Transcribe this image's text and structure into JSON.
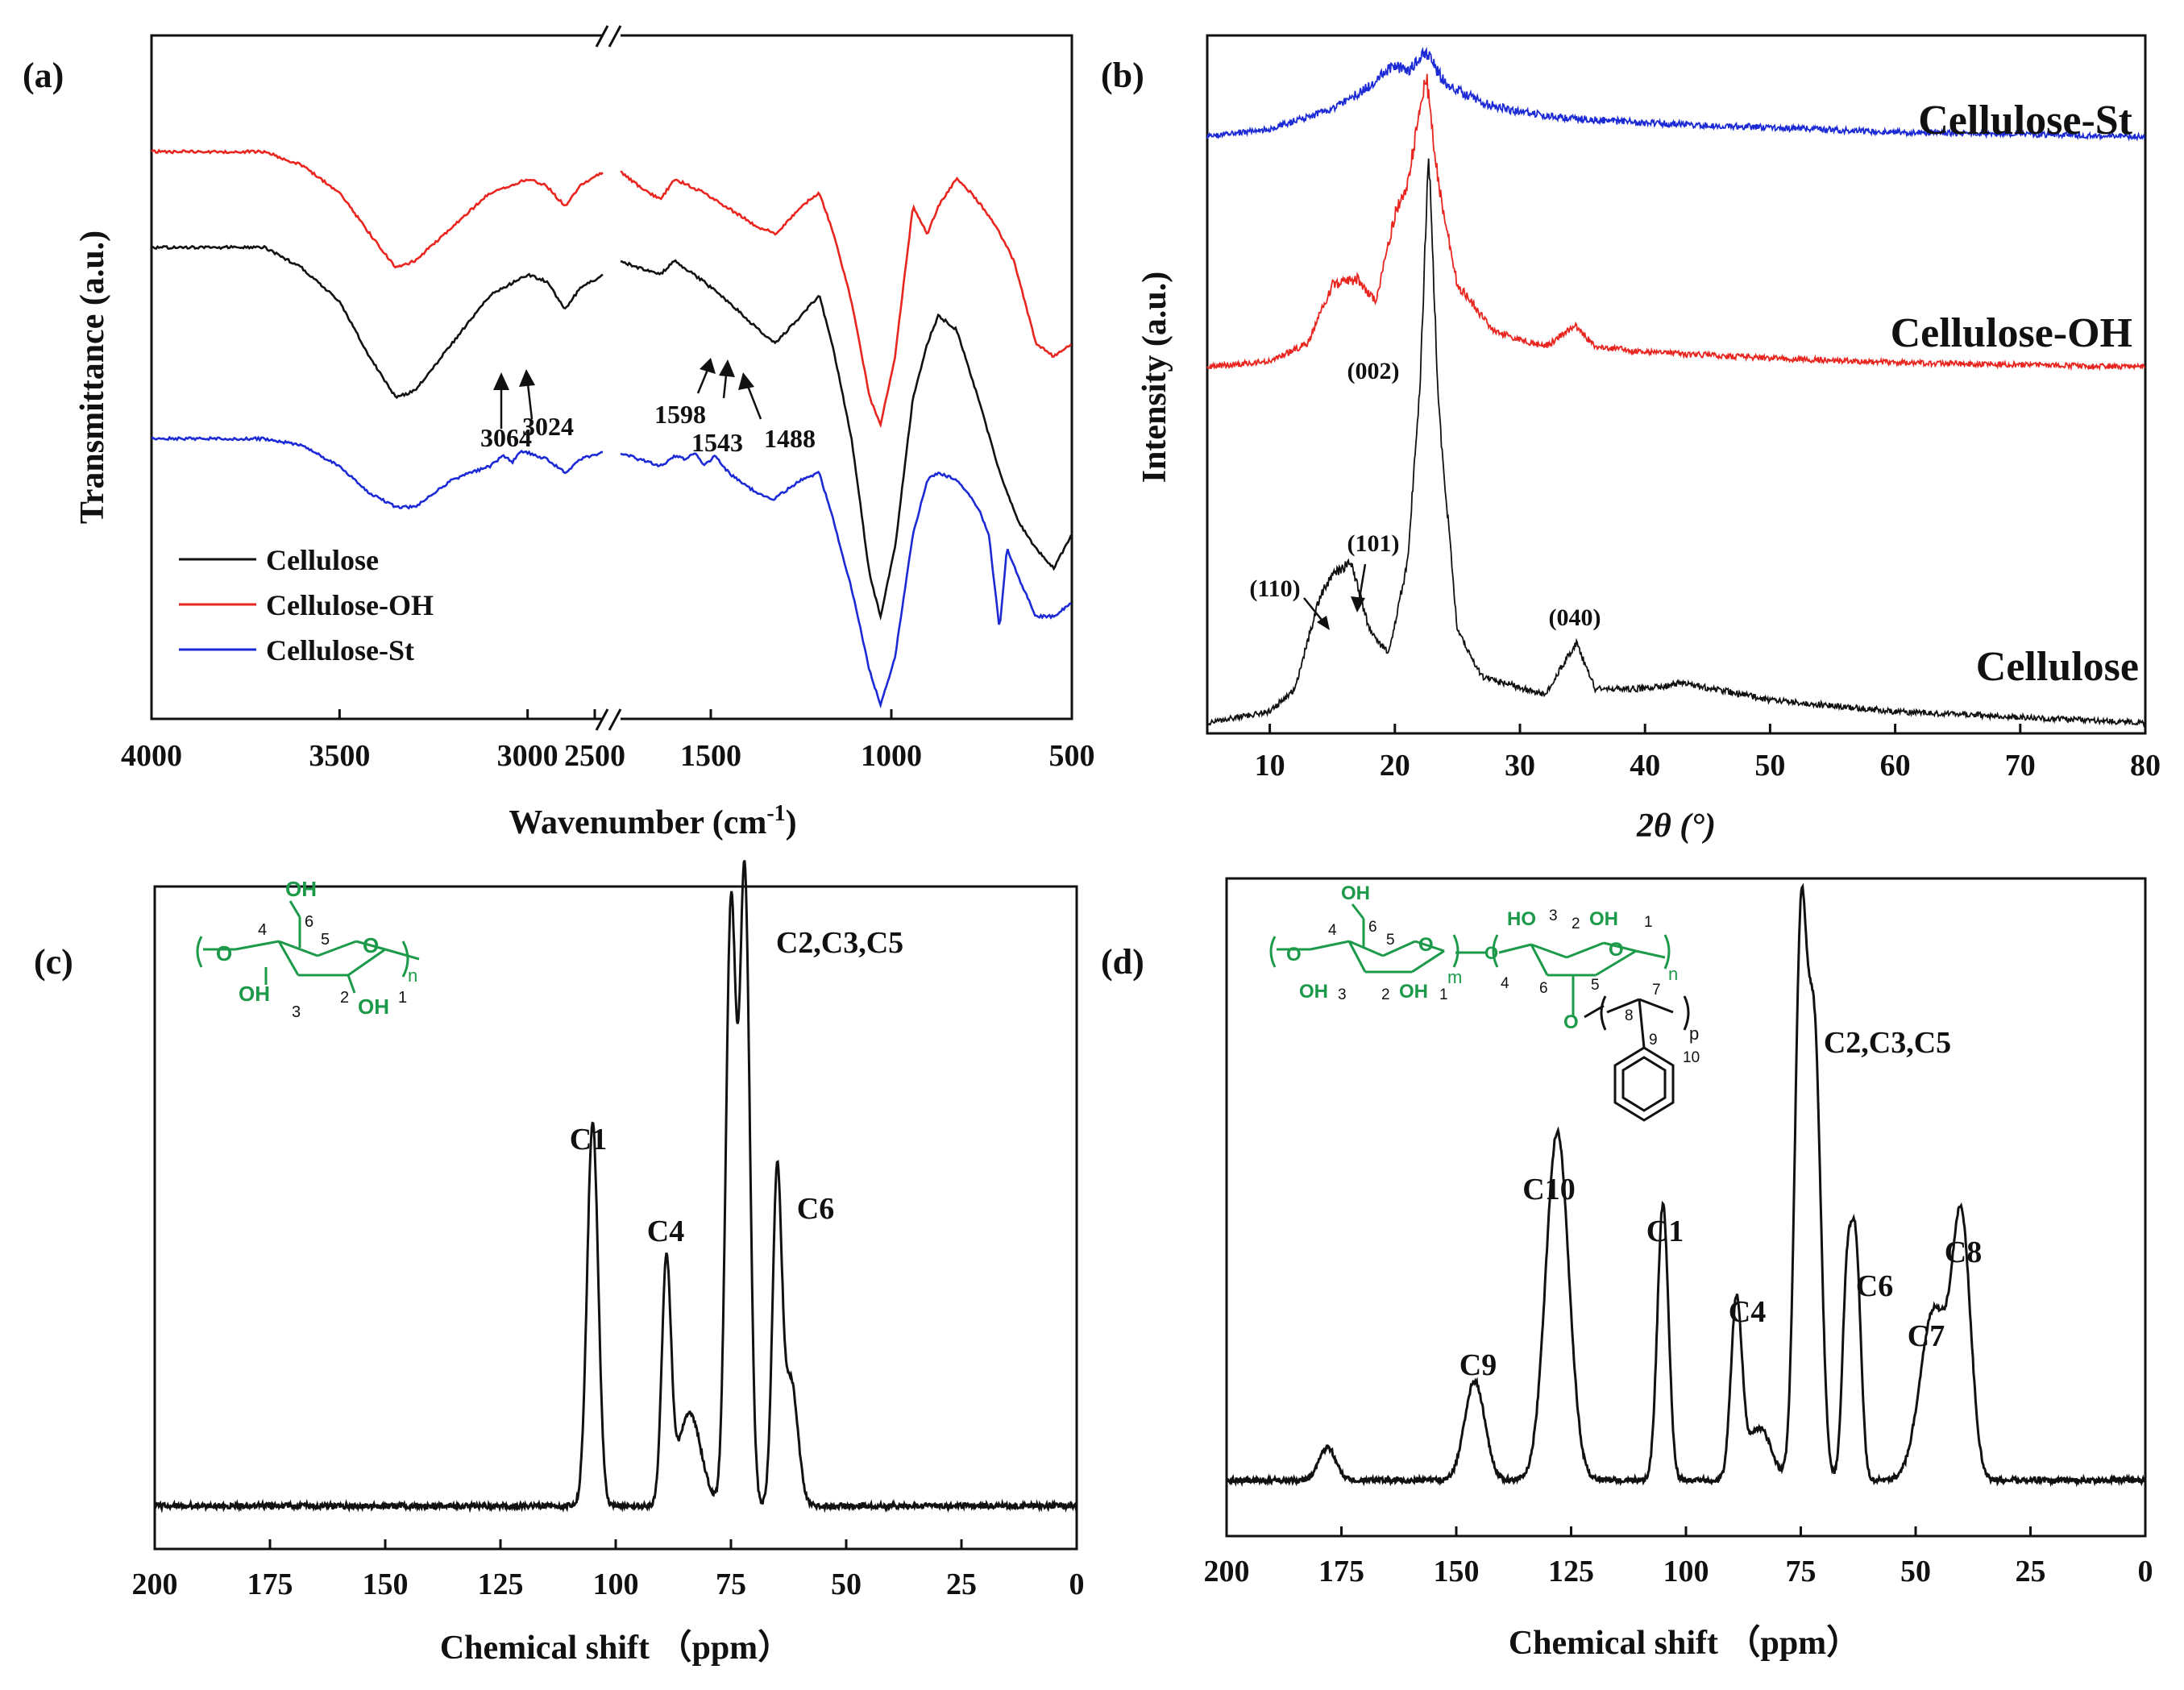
{
  "chart_data": [
    {
      "panel": "(a)",
      "type": "line",
      "xlabel": "Wavenumber (cm",
      "xlabel_sup": "-1",
      "xlabel_close": ")",
      "ylabel": "Transmittance (a.u.)",
      "xlim": [
        4000,
        500
      ],
      "axis_break": [
        2800,
        1750
      ],
      "xticks": [
        "4000",
        "3500",
        "3000",
        "2500",
        "1500",
        "1000",
        "500"
      ],
      "y_ticks_shown": false,
      "legend": {
        "position": "bottom-left",
        "entries": [
          "Cellulose",
          "Cellulose-OH",
          "Cellulose-St"
        ]
      },
      "annotations": [
        "3064",
        "3024",
        "1598",
        "1543",
        "1488"
      ],
      "series": [
        {
          "name": "Cellulose-OH",
          "color": "#e8251f",
          "offset": 0.83,
          "points": [
            [
              4000,
              0
            ],
            [
              3700,
              0
            ],
            [
              3600,
              -0.02
            ],
            [
              3500,
              -0.06
            ],
            [
              3420,
              -0.12
            ],
            [
              3350,
              -0.17
            ],
            [
              3300,
              -0.16
            ],
            [
              3200,
              -0.11
            ],
            [
              3100,
              -0.06
            ],
            [
              3000,
              -0.04
            ],
            [
              2950,
              -0.05
            ],
            [
              2900,
              -0.08
            ],
            [
              2860,
              -0.05
            ],
            [
              2800,
              -0.03
            ],
            [
              1750,
              -0.03
            ],
            [
              1700,
              -0.05
            ],
            [
              1640,
              -0.07
            ],
            [
              1600,
              -0.04
            ],
            [
              1520,
              -0.06
            ],
            [
              1430,
              -0.09
            ],
            [
              1370,
              -0.11
            ],
            [
              1320,
              -0.12
            ],
            [
              1250,
              -0.08
            ],
            [
              1200,
              -0.06
            ],
            [
              1160,
              -0.12
            ],
            [
              1110,
              -0.22
            ],
            [
              1060,
              -0.36
            ],
            [
              1030,
              -0.4
            ],
            [
              990,
              -0.3
            ],
            [
              940,
              -0.08
            ],
            [
              900,
              -0.12
            ],
            [
              870,
              -0.08
            ],
            [
              820,
              -0.04
            ],
            [
              780,
              -0.06
            ],
            [
              720,
              -0.1
            ],
            [
              660,
              -0.16
            ],
            [
              600,
              -0.28
            ],
            [
              550,
              -0.3
            ],
            [
              500,
              -0.28
            ]
          ]
        },
        {
          "name": "Cellulose",
          "color": "#111111",
          "offset": 0.69,
          "points": [
            [
              4000,
              0
            ],
            [
              3700,
              0
            ],
            [
              3600,
              -0.03
            ],
            [
              3500,
              -0.08
            ],
            [
              3420,
              -0.16
            ],
            [
              3350,
              -0.22
            ],
            [
              3300,
              -0.21
            ],
            [
              3200,
              -0.14
            ],
            [
              3100,
              -0.07
            ],
            [
              3000,
              -0.04
            ],
            [
              2950,
              -0.05
            ],
            [
              2900,
              -0.09
            ],
            [
              2860,
              -0.06
            ],
            [
              2800,
              -0.04
            ],
            [
              1750,
              -0.02
            ],
            [
              1700,
              -0.03
            ],
            [
              1640,
              -0.04
            ],
            [
              1600,
              -0.02
            ],
            [
              1520,
              -0.05
            ],
            [
              1430,
              -0.09
            ],
            [
              1370,
              -0.12
            ],
            [
              1320,
              -0.14
            ],
            [
              1250,
              -0.1
            ],
            [
              1200,
              -0.07
            ],
            [
              1160,
              -0.15
            ],
            [
              1110,
              -0.28
            ],
            [
              1060,
              -0.48
            ],
            [
              1030,
              -0.54
            ],
            [
              990,
              -0.44
            ],
            [
              940,
              -0.22
            ],
            [
              900,
              -0.14
            ],
            [
              870,
              -0.1
            ],
            [
              820,
              -0.12
            ],
            [
              760,
              -0.22
            ],
            [
              700,
              -0.33
            ],
            [
              650,
              -0.4
            ],
            [
              600,
              -0.44
            ],
            [
              550,
              -0.47
            ],
            [
              500,
              -0.42
            ]
          ]
        },
        {
          "name": "Cellulose-St",
          "color": "#1c2ad6",
          "offset": 0.41,
          "points": [
            [
              4000,
              0
            ],
            [
              3700,
              0
            ],
            [
              3600,
              -0.01
            ],
            [
              3500,
              -0.04
            ],
            [
              3420,
              -0.08
            ],
            [
              3350,
              -0.1
            ],
            [
              3300,
              -0.1
            ],
            [
              3200,
              -0.06
            ],
            [
              3100,
              -0.04
            ],
            [
              3064,
              -0.025
            ],
            [
              3040,
              -0.035
            ],
            [
              3024,
              -0.02
            ],
            [
              3000,
              -0.02
            ],
            [
              2950,
              -0.03
            ],
            [
              2900,
              -0.05
            ],
            [
              2860,
              -0.03
            ],
            [
              2800,
              -0.02
            ],
            [
              1750,
              -0.02
            ],
            [
              1700,
              -0.03
            ],
            [
              1640,
              -0.04
            ],
            [
              1598,
              -0.025
            ],
            [
              1570,
              -0.03
            ],
            [
              1543,
              -0.02
            ],
            [
              1520,
              -0.04
            ],
            [
              1488,
              -0.025
            ],
            [
              1450,
              -0.05
            ],
            [
              1400,
              -0.07
            ],
            [
              1330,
              -0.09
            ],
            [
              1250,
              -0.06
            ],
            [
              1200,
              -0.05
            ],
            [
              1160,
              -0.12
            ],
            [
              1110,
              -0.22
            ],
            [
              1060,
              -0.34
            ],
            [
              1030,
              -0.39
            ],
            [
              990,
              -0.32
            ],
            [
              940,
              -0.14
            ],
            [
              900,
              -0.06
            ],
            [
              870,
              -0.05
            ],
            [
              820,
              -0.06
            ],
            [
              760,
              -0.1
            ],
            [
              730,
              -0.14
            ],
            [
              700,
              -0.28
            ],
            [
              680,
              -0.16
            ],
            [
              650,
              -0.2
            ],
            [
              600,
              -0.26
            ],
            [
              550,
              -0.26
            ],
            [
              500,
              -0.24
            ]
          ]
        }
      ]
    },
    {
      "panel": "(b)",
      "type": "line",
      "xlabel": "2θ (°)",
      "ylabel": "Intensity (a.u.)",
      "xlim": [
        5,
        80
      ],
      "xticks": [
        "10",
        "20",
        "30",
        "40",
        "50",
        "60",
        "70",
        "80"
      ],
      "y_ticks_shown": false,
      "annotations": [
        "(110)",
        "(101)",
        "(002)",
        "(040)"
      ],
      "series": [
        {
          "name": "Cellulose-St",
          "color": "#1c2ad6",
          "offset": 0.84,
          "peak_scale": 0.22,
          "points": [
            [
              5,
              0
            ],
            [
              10,
              0.05
            ],
            [
              15,
              0.18
            ],
            [
              18,
              0.33
            ],
            [
              20,
              0.47
            ],
            [
              21,
              0.42
            ],
            [
              22.5,
              0.55
            ],
            [
              24,
              0.35
            ],
            [
              27,
              0.22
            ],
            [
              30,
              0.16
            ],
            [
              34,
              0.12
            ],
            [
              40,
              0.09
            ],
            [
              50,
              0.06
            ],
            [
              60,
              0.03
            ],
            [
              70,
              0.015
            ],
            [
              80,
              0
            ]
          ]
        },
        {
          "name": "Cellulose-OH",
          "color": "#e8251f",
          "offset": 0.51,
          "peak_scale": 0.42,
          "points": [
            [
              5,
              0
            ],
            [
              10,
              0.02
            ],
            [
              13,
              0.08
            ],
            [
              15,
              0.28
            ],
            [
              17,
              0.3
            ],
            [
              18.5,
              0.22
            ],
            [
              20,
              0.52
            ],
            [
              21,
              0.62
            ],
            [
              22.5,
              1.0
            ],
            [
              23.5,
              0.62
            ],
            [
              25,
              0.28
            ],
            [
              28,
              0.12
            ],
            [
              32,
              0.07
            ],
            [
              34.5,
              0.14
            ],
            [
              36,
              0.07
            ],
            [
              40,
              0.05
            ],
            [
              50,
              0.03
            ],
            [
              60,
              0.015
            ],
            [
              80,
              0
            ]
          ]
        },
        {
          "name": "Cellulose",
          "color": "#111111",
          "offset": 0.0,
          "peak_scale": 0.82,
          "points": [
            [
              5,
              0
            ],
            [
              10,
              0.02
            ],
            [
              12,
              0.06
            ],
            [
              14,
              0.22
            ],
            [
              15,
              0.26
            ],
            [
              16.5,
              0.28
            ],
            [
              18,
              0.16
            ],
            [
              19.5,
              0.12
            ],
            [
              21,
              0.28
            ],
            [
              22,
              0.58
            ],
            [
              22.7,
              1.0
            ],
            [
              23.5,
              0.55
            ],
            [
              25,
              0.16
            ],
            [
              27,
              0.08
            ],
            [
              32,
              0.05
            ],
            [
              34.5,
              0.14
            ],
            [
              36,
              0.06
            ],
            [
              40,
              0.06
            ],
            [
              43,
              0.07
            ],
            [
              50,
              0.04
            ],
            [
              60,
              0.02
            ],
            [
              70,
              0.01
            ],
            [
              80,
              0
            ]
          ]
        }
      ],
      "series_labels": [
        "Cellulose-St",
        "Cellulose-OH",
        "Cellulose"
      ]
    },
    {
      "panel": "(c)",
      "type": "line",
      "xlabel": "Chemical shift （ppm）",
      "xlim": [
        200,
        0
      ],
      "xticks": [
        "200",
        "175",
        "150",
        "125",
        "100",
        "75",
        "50",
        "25",
        "0"
      ],
      "peak_labels": [
        "C1",
        "C4",
        "C2,C3,C5",
        "C6"
      ],
      "peaks": [
        {
          "ppm": 105,
          "height": 0.58,
          "width": 1.2
        },
        {
          "ppm": 89,
          "height": 0.36,
          "width": 1.0
        },
        {
          "ppm": 84,
          "height": 0.14,
          "width": 2.5
        },
        {
          "ppm": 75,
          "height": 0.9,
          "width": 1.1
        },
        {
          "ppm": 72,
          "height": 0.95,
          "width": 1.1
        },
        {
          "ppm": 65,
          "height": 0.49,
          "width": 1.0
        },
        {
          "ppm": 62,
          "height": 0.19,
          "width": 1.5
        }
      ],
      "structure_labels": [
        "OH",
        "OH",
        "OH",
        "O",
        "O",
        "n",
        "4",
        "5",
        "6",
        "3",
        "2",
        "1"
      ],
      "structure_color": "#1c9a4a"
    },
    {
      "panel": "(d)",
      "type": "line",
      "xlabel": "Chemical shift （ppm）",
      "xlim": [
        200,
        0
      ],
      "xticks": [
        "200",
        "175",
        "150",
        "125",
        "100",
        "75",
        "50",
        "25",
        "0"
      ],
      "peak_labels": [
        "C10",
        "C9",
        "C1",
        "C4",
        "C2,C3,C5",
        "C6",
        "C7",
        "C8"
      ],
      "peaks": [
        {
          "ppm": 178,
          "height": 0.05,
          "width": 1.8
        },
        {
          "ppm": 146,
          "height": 0.15,
          "width": 2.2
        },
        {
          "ppm": 128,
          "height": 0.53,
          "width": 2.5
        },
        {
          "ppm": 105,
          "height": 0.42,
          "width": 1.2
        },
        {
          "ppm": 89,
          "height": 0.27,
          "width": 1.2
        },
        {
          "ppm": 84,
          "height": 0.08,
          "width": 2.5
        },
        {
          "ppm": 75,
          "height": 0.82,
          "width": 1.3
        },
        {
          "ppm": 72,
          "height": 0.66,
          "width": 1.4
        },
        {
          "ppm": 65,
          "height": 0.28,
          "width": 1.0
        },
        {
          "ppm": 63,
          "height": 0.34,
          "width": 1.1
        },
        {
          "ppm": 46,
          "height": 0.26,
          "width": 3.0
        },
        {
          "ppm": 40,
          "height": 0.38,
          "width": 2.0
        }
      ],
      "structure_labels": [
        "OH",
        "OH",
        "OH",
        "HO",
        "OH",
        "O",
        "O",
        "O",
        "O",
        "O",
        "m",
        "n",
        "p",
        "4",
        "6",
        "5",
        "3",
        "2",
        "1",
        "3",
        "2",
        "1",
        "4",
        "6",
        "5",
        "7",
        "8",
        "9",
        "10"
      ],
      "structure_color": "#1c9a4a"
    }
  ]
}
